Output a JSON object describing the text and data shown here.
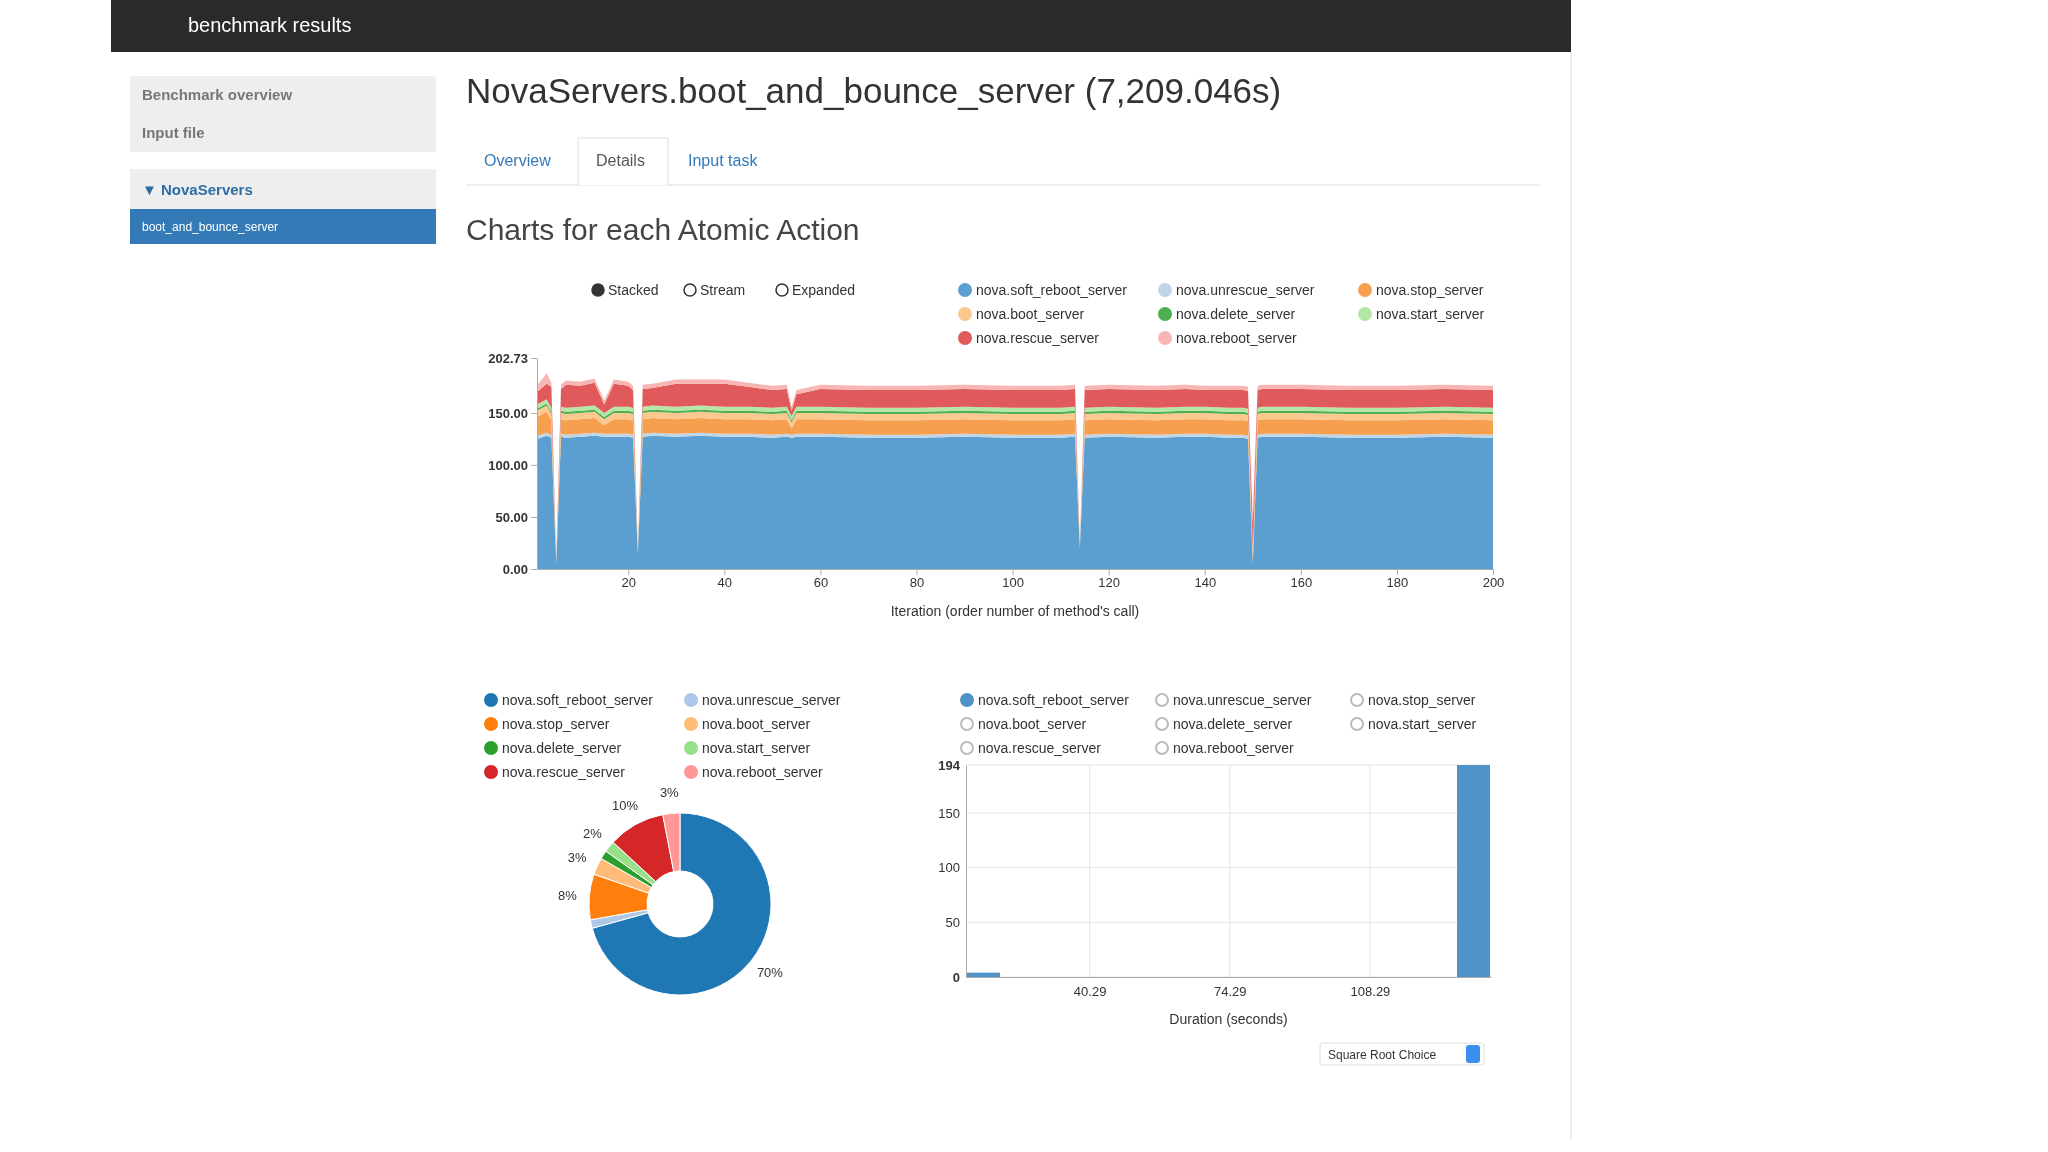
{
  "chart_data": [
    {
      "type": "other",
      "title": "NovaServers.boot_and_bounce_server (7,209.046s)",
      "subtitle": "Charts for each Atomic Action",
      "annotations": [
        "benchmark results",
        "Benchmark overview",
        "Input file",
        "▼ NovaServers",
        "boot_and_bounce_server",
        "Overview",
        "Details",
        "Input task"
      ]
    },
    {
      "type": "area",
      "stacked": true,
      "xlabel": "Iteration (order number of method's call)",
      "legend": "top right",
      "annotations": [
        "Stacked",
        "Stream",
        "Expanded"
      ],
      "x": [
        1,
        3,
        4,
        5,
        6,
        7,
        10,
        13,
        15,
        17,
        20,
        21,
        22,
        23,
        25,
        30,
        35,
        40,
        45,
        50,
        53,
        54,
        55,
        60,
        70,
        80,
        90,
        100,
        110,
        113,
        114,
        115,
        120,
        130,
        136,
        140,
        145,
        148,
        149,
        150,
        151,
        152,
        153,
        160,
        170,
        180,
        190,
        200
      ],
      "xlim": [
        1,
        200
      ],
      "xticks": [
        20,
        40,
        60,
        80,
        100,
        120,
        140,
        160,
        180,
        200
      ],
      "ylim": [
        0,
        202.73
      ],
      "yticks": [
        {
          "value": 0,
          "label": "0.00"
        },
        {
          "value": 50,
          "label": "50.00"
        },
        {
          "value": 100,
          "label": "100.00"
        },
        {
          "value": 150,
          "label": "150.00"
        },
        {
          "value": 202.73,
          "label": "202.73"
        }
      ],
      "series": [
        {
          "name": "nova.soft_reboot_server",
          "color": "#5b9fd0",
          "values": [
            125,
            128,
            126,
            5,
            127,
            126,
            127,
            128,
            127,
            127,
            127,
            126,
            15,
            127,
            128,
            127,
            128,
            127,
            127,
            126,
            127,
            126,
            127,
            127,
            126,
            126,
            127,
            126,
            126,
            127,
            20,
            126,
            127,
            126,
            127,
            127,
            126,
            126,
            125,
            5,
            126,
            127,
            127,
            127,
            126,
            126,
            127,
            126
          ]
        },
        {
          "name": "nova.unrescue_server",
          "color": "#c0d5ea",
          "values": [
            3,
            3,
            3,
            1,
            3,
            3,
            3,
            3,
            3,
            3,
            3,
            3,
            1,
            3,
            3,
            3,
            3,
            3,
            3,
            3,
            3,
            3,
            3,
            3,
            3,
            3,
            3,
            3,
            3,
            3,
            1,
            3,
            3,
            3,
            3,
            3,
            3,
            3,
            3,
            1,
            3,
            3,
            3,
            3,
            3,
            3,
            3,
            3
          ]
        },
        {
          "name": "nova.stop_server",
          "color": "#f59f4f",
          "values": [
            18,
            20,
            14,
            1,
            14,
            14,
            14,
            14,
            8,
            14,
            14,
            14,
            1,
            14,
            14,
            14,
            14,
            14,
            14,
            14,
            14,
            6,
            14,
            14,
            14,
            14,
            14,
            14,
            14,
            14,
            1,
            14,
            14,
            14,
            14,
            14,
            14,
            14,
            14,
            6,
            14,
            14,
            14,
            14,
            14,
            14,
            14,
            14
          ]
        },
        {
          "name": "nova.boot_server",
          "color": "#fbc890",
          "values": [
            6,
            6,
            6,
            0,
            6,
            6,
            6,
            6,
            6,
            6,
            6,
            6,
            0,
            6,
            6,
            6,
            6,
            6,
            6,
            6,
            6,
            6,
            6,
            6,
            6,
            6,
            6,
            6,
            6,
            6,
            0,
            6,
            6,
            6,
            6,
            6,
            6,
            6,
            6,
            4,
            6,
            6,
            6,
            6,
            6,
            6,
            6,
            6
          ]
        },
        {
          "name": "nova.delete_server",
          "color": "#4fae4f",
          "values": [
            2,
            2,
            2,
            0,
            2,
            2,
            2,
            2,
            2,
            2,
            2,
            2,
            0,
            2,
            2,
            2,
            2,
            2,
            2,
            2,
            2,
            2,
            2,
            2,
            2,
            2,
            2,
            2,
            2,
            2,
            0,
            2,
            2,
            2,
            2,
            2,
            2,
            2,
            2,
            1,
            2,
            2,
            2,
            2,
            2,
            2,
            2,
            2
          ]
        },
        {
          "name": "nova.start_server",
          "color": "#b4e6a8",
          "values": [
            4,
            4,
            4,
            0,
            4,
            4,
            4,
            4,
            4,
            4,
            4,
            4,
            0,
            4,
            4,
            4,
            4,
            4,
            4,
            4,
            4,
            4,
            4,
            4,
            4,
            4,
            4,
            4,
            4,
            4,
            0,
            4,
            4,
            4,
            4,
            4,
            4,
            4,
            4,
            2,
            4,
            4,
            4,
            4,
            4,
            4,
            4,
            4
          ]
        },
        {
          "name": "nova.rescue_server",
          "color": "#e05a5b",
          "values": [
            12,
            15,
            20,
            1,
            17,
            22,
            20,
            22,
            8,
            22,
            20,
            17,
            1,
            17,
            17,
            22,
            21,
            22,
            19,
            17,
            17,
            5,
            12,
            17,
            17,
            17,
            17,
            17,
            17,
            17,
            1,
            17,
            17,
            17,
            17,
            16,
            17,
            17,
            17,
            25,
            17,
            17,
            17,
            17,
            17,
            17,
            17,
            17
          ]
        },
        {
          "name": "nova.reboot_server",
          "color": "#f7b5b4",
          "values": [
            6,
            10,
            4,
            0,
            4,
            4,
            4,
            4,
            4,
            4,
            4,
            4,
            0,
            4,
            4,
            4,
            4,
            4,
            4,
            4,
            4,
            4,
            4,
            4,
            4,
            4,
            4,
            4,
            4,
            4,
            0,
            4,
            4,
            4,
            4,
            4,
            4,
            4,
            4,
            8,
            4,
            4,
            4,
            4,
            4,
            4,
            4,
            4
          ]
        }
      ]
    },
    {
      "type": "donut",
      "legend": "top",
      "categories": [
        "nova.soft_reboot_server",
        "nova.unrescue_server",
        "nova.stop_server",
        "nova.boot_server",
        "nova.delete_server",
        "nova.start_server",
        "nova.rescue_server",
        "nova.reboot_server"
      ],
      "values": [
        70,
        1.5,
        8,
        3,
        1.5,
        2,
        10,
        3
      ],
      "value_labels": [
        "70%",
        null,
        "8%",
        "3%",
        null,
        "2%",
        "10%",
        "3%"
      ],
      "colors": [
        "#1f77b4",
        "#aec7e8",
        "#ff7f0e",
        "#ffbb78",
        "#2ca02c",
        "#98df8a",
        "#d62728",
        "#ff9896"
      ]
    },
    {
      "type": "histogram",
      "xlabel": "Duration (seconds)",
      "legend": "top left",
      "grid": true,
      "annotations": [
        "Square Root Choice",
        "nova.unrescue_server",
        "nova.stop_server",
        "nova.boot_server",
        "nova.delete_server",
        "nova.start_server",
        "nova.rescue_server",
        "nova.reboot_server"
      ],
      "bins": [
        10.3,
        18.79,
        27.28,
        35.77,
        44.26,
        52.75,
        61.24,
        69.73,
        78.22,
        86.71,
        95.2,
        103.69,
        112.18,
        120.67,
        129.16,
        137.65
      ],
      "xlim": [
        10.3,
        137.65
      ],
      "xticks": [
        40.29,
        74.29,
        108.29
      ],
      "ylim": [
        0,
        194
      ],
      "yticks": [
        0,
        50,
        100,
        150,
        194
      ],
      "series": [
        {
          "name": "nova.soft_reboot_server",
          "color": "#4f93c8",
          "values": [
            4,
            0,
            0,
            0,
            0,
            0,
            0,
            0,
            0,
            0,
            0,
            0,
            0,
            0,
            194
          ]
        }
      ]
    }
  ]
}
